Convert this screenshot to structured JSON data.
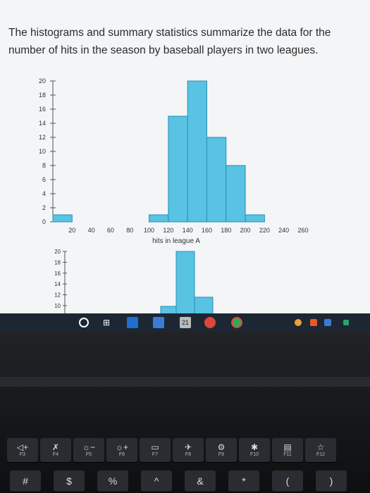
{
  "question": "The histograms and summary statistics summarize the data for the number of hits in the season by baseball players in two leagues.",
  "chart_data": [
    {
      "type": "bar",
      "xlabel": "hits in league A",
      "bin_edges": [
        0,
        20,
        40,
        60,
        80,
        100,
        120,
        140,
        160,
        180,
        200,
        220,
        240,
        260
      ],
      "values": [
        1,
        0,
        0,
        0,
        0,
        1,
        15,
        20,
        12,
        8,
        1,
        0,
        0
      ],
      "xticks": [
        20,
        40,
        60,
        80,
        100,
        120,
        140,
        160,
        180,
        200,
        220,
        240,
        260
      ],
      "yticks": [
        0,
        2,
        4,
        6,
        8,
        10,
        12,
        14,
        16,
        18,
        20
      ],
      "ylim": [
        0,
        20
      ],
      "bar_color": "#58c3e3"
    },
    {
      "type": "bar",
      "xlabel": "",
      "yticks": [
        10,
        12,
        14,
        16,
        18,
        20
      ],
      "ylim": [
        0,
        20
      ],
      "bar_color": "#58c3e3",
      "partially_visible": true
    }
  ],
  "taskbar": {
    "icons": [
      "circle-icon",
      "task-view-icon",
      "mail-icon",
      "store-icon",
      "calendar-icon",
      "news-icon",
      "chrome-icon",
      "tray-icon",
      "dropbox-icon",
      "onedrive-icon",
      "network-icon"
    ],
    "calendar_day": "21"
  },
  "keyboard": {
    "fn_row": [
      {
        "glyph": "◁+",
        "label": "F3"
      },
      {
        "glyph": "✗",
        "label": "F4"
      },
      {
        "glyph": "☼−",
        "label": "F5"
      },
      {
        "glyph": "☼+",
        "label": "F6"
      },
      {
        "glyph": "▭",
        "label": "F7"
      },
      {
        "glyph": "✈",
        "label": "F8"
      },
      {
        "glyph": "⚙",
        "label": "F9"
      },
      {
        "glyph": "✱",
        "label": "F10"
      },
      {
        "glyph": "▤",
        "label": "F11"
      },
      {
        "glyph": "☆",
        "label": "F12"
      }
    ],
    "num_row": [
      "#",
      "$",
      "%",
      "^",
      "&",
      "*",
      "(",
      ")"
    ]
  }
}
